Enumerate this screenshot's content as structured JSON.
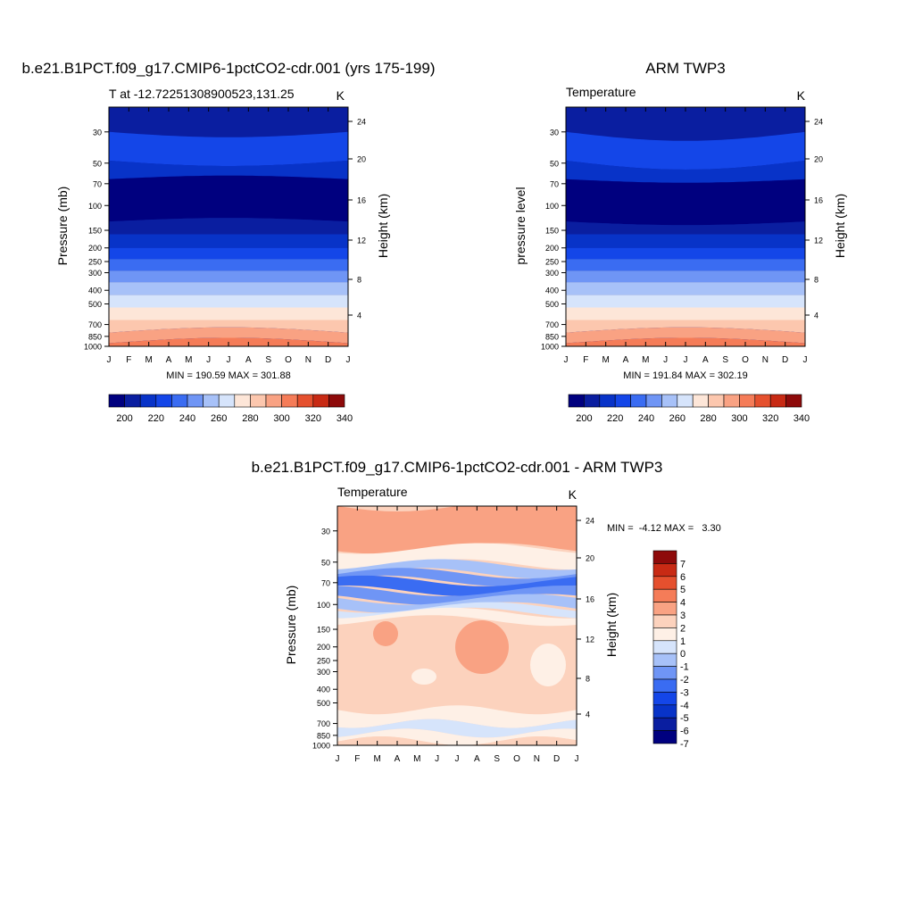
{
  "chart_data": [
    {
      "type": "heatmap",
      "title": "b.e21.B1PCT.f09_g17.CMIP6-1pctCO2-cdr.001 (yrs 175-199)",
      "left_string": "T at -12.72251308900523,131.25",
      "right_string": "K",
      "ylabel": "Pressure (mb)",
      "right_ylabel": "Height (km)",
      "x_ticks": [
        "J",
        "F",
        "M",
        "A",
        "M",
        "J",
        "J",
        "A",
        "S",
        "O",
        "N",
        "D",
        "J"
      ],
      "y_ticks": [
        "30",
        "50",
        "70",
        "100",
        "150",
        "200",
        "250",
        "300",
        "400",
        "500",
        "700",
        "850",
        "1000"
      ],
      "right_ticks": [
        "24",
        "20",
        "16",
        "12",
        "8",
        "4"
      ],
      "y_scale": "log",
      "min_max": "MIN = 190.59 MAX = 301.88",
      "colorbar_ticks": [
        "200",
        "220",
        "240",
        "260",
        "280",
        "300",
        "320",
        "340"
      ],
      "fill_levels": [
        {
          "p": 30,
          "level": 3
        },
        {
          "p": 48,
          "level": 2
        },
        {
          "p": 65,
          "level": 0
        },
        {
          "p": 130,
          "level": 1
        },
        {
          "p": 160,
          "level": 2
        },
        {
          "p": 200,
          "level": 3
        },
        {
          "p": 240,
          "level": 4
        },
        {
          "p": 290,
          "level": 5
        },
        {
          "p": 350,
          "level": 6
        },
        {
          "p": 430,
          "level": 7
        },
        {
          "p": 530,
          "level": 8
        },
        {
          "p": 650,
          "level": 9
        },
        {
          "p": 800,
          "level": 10
        },
        {
          "p": 950,
          "level": 11
        }
      ]
    },
    {
      "type": "heatmap",
      "title": "ARM TWP3",
      "left_string": "Temperature",
      "right_string": "K",
      "ylabel": "pressure level",
      "right_ylabel": "Height (km)",
      "x_ticks": [
        "J",
        "F",
        "M",
        "A",
        "M",
        "J",
        "J",
        "A",
        "S",
        "O",
        "N",
        "D",
        "J"
      ],
      "y_ticks": [
        "30",
        "50",
        "70",
        "100",
        "150",
        "200",
        "250",
        "300",
        "400",
        "500",
        "700",
        "850",
        "1000"
      ],
      "right_ticks": [
        "24",
        "20",
        "16",
        "12",
        "8",
        "4"
      ],
      "y_scale": "log",
      "min_max": "MIN = 191.84 MAX = 302.19",
      "colorbar_ticks": [
        "200",
        "220",
        "240",
        "260",
        "280",
        "300",
        "320",
        "340"
      ]
    },
    {
      "type": "heatmap",
      "title": "b.e21.B1PCT.f09_g17.CMIP6-1pctCO2-cdr.001 - ARM TWP3",
      "left_string": "Temperature",
      "right_string": "K",
      "ylabel": "Pressure (mb)",
      "right_ylabel": "Height (km)",
      "x_ticks": [
        "J",
        "F",
        "M",
        "A",
        "M",
        "J",
        "J",
        "A",
        "S",
        "O",
        "N",
        "D",
        "J"
      ],
      "y_ticks": [
        "30",
        "50",
        "70",
        "100",
        "150",
        "200",
        "250",
        "300",
        "400",
        "500",
        "700",
        "850",
        "1000"
      ],
      "right_ticks": [
        "24",
        "20",
        "16",
        "12",
        "8",
        "4"
      ],
      "y_scale": "log",
      "min_max": "MIN =  -4.12 MAX =   3.30",
      "colorbar_ticks": [
        "7",
        "6",
        "5",
        "4",
        "3",
        "2",
        "1",
        "0",
        "-1",
        "-2",
        "-3",
        "-4",
        "-5",
        "-6",
        "-7"
      ]
    }
  ],
  "palettes": {
    "abs": [
      "#00007f",
      "#0a1ea0",
      "#0833c8",
      "#1446e8",
      "#3a6cf2",
      "#6f95f5",
      "#a7c1f8",
      "#d6e4fb",
      "#fde6d8",
      "#fcc7ae",
      "#f9a283",
      "#f57c58",
      "#e5502e",
      "#c82a14",
      "#8e0a0a"
    ],
    "diff": [
      "#00007f",
      "#0a1ea0",
      "#0833c8",
      "#1446e8",
      "#3a6cf2",
      "#6f95f5",
      "#a7c1f8",
      "#d6e4fb",
      "#fef0e6",
      "#fcd2bd",
      "#f9a283",
      "#f57c58",
      "#e5502e",
      "#c82a14",
      "#8e0a0a"
    ]
  }
}
